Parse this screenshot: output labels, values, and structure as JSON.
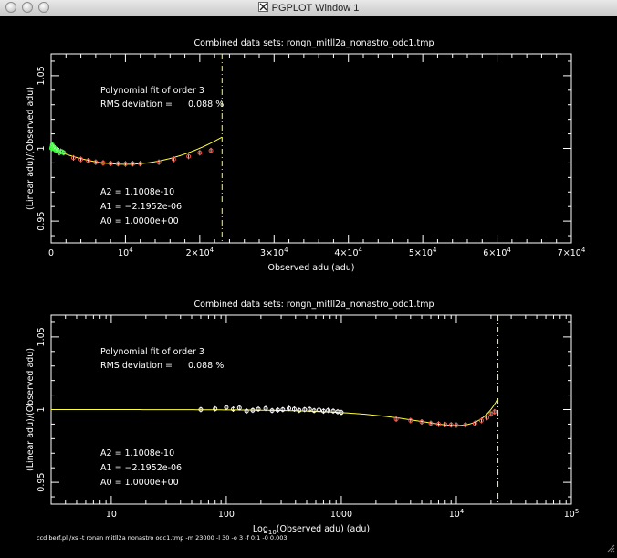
{
  "window": {
    "title": "PGPLOT Window 1"
  },
  "footer": {
    "command": "ccd berf.pl /xs -t ronan mitll2a nonastro odc1.tmp -m 23000 -l 30 -o 3 -f 0:1 -0 0.003"
  },
  "colors": {
    "background": "#000000",
    "axes": "#ffffff",
    "fit": "#ffff40",
    "cutoff": "#ffff40",
    "points_low": "#40ff40",
    "points": "#ff5040",
    "errorbar": "#ffffff"
  },
  "chart_data": [
    {
      "type": "scatter",
      "title": "Combined data sets: rongn_mitll2a_nonastro_odc1.tmp",
      "xlabel": "Observed adu (adu)",
      "ylabel": "(Linear adu)/(Observed adu)",
      "xscale": "linear",
      "xlim": [
        0,
        70000
      ],
      "ylim": [
        0.935,
        1.065
      ],
      "xticks": [
        {
          "v": 0,
          "label": "0"
        },
        {
          "v": 10000,
          "label": "10^4"
        },
        {
          "v": 20000,
          "label": "2×10^4"
        },
        {
          "v": 30000,
          "label": "3×10^4"
        },
        {
          "v": 40000,
          "label": "4×10^4"
        },
        {
          "v": 50000,
          "label": "5×10^4"
        },
        {
          "v": 60000,
          "label": "6×10^4"
        },
        {
          "v": 70000,
          "label": "7×10^4"
        }
      ],
      "yticks": [
        {
          "v": 0.95,
          "label": "0.95"
        },
        {
          "v": 1.0,
          "label": "1"
        },
        {
          "v": 1.05,
          "label": "1.05"
        }
      ],
      "cutoff": 23000,
      "annotations": {
        "fit_label": "Polynomial fit of order  3",
        "rms_label": "RMS deviation =",
        "rms_value": "0.088 %",
        "coeff_a2": "A2 = 1.1008e-10",
        "coeff_a1": "A1 = −2.1952e-06",
        "coeff_a0": "A0 = 1.0000e+00"
      },
      "fit": {
        "A0": 1.0,
        "A1": -2.1952e-06,
        "A2": 1.1008e-10,
        "A3": 0,
        "xmin": 0,
        "xmax": 23000
      },
      "series": [
        {
          "role": "low",
          "x": [
            60,
            100,
            150,
            200,
            280,
            350,
            450,
            550,
            650,
            800,
            950,
            1100,
            1300,
            1500,
            1700
          ],
          "y": [
            1.0,
            1.001,
            1.0025,
            1.0015,
            1.0,
            1.001,
            0.9995,
            1.0,
            0.9985,
            0.999,
            0.998,
            0.997,
            0.998,
            0.9975,
            0.997
          ]
        },
        {
          "role": "main",
          "x": [
            3000,
            4000,
            5000,
            6000,
            7000,
            8000,
            9000,
            10000,
            11000,
            12000,
            14500,
            16500,
            18500,
            20000,
            21500
          ],
          "y": [
            0.9935,
            0.9925,
            0.9915,
            0.9905,
            0.99,
            0.9897,
            0.9895,
            0.9893,
            0.9895,
            0.9895,
            0.9905,
            0.9925,
            0.9945,
            0.997,
            0.9985
          ]
        }
      ]
    },
    {
      "type": "scatter",
      "title": "Combined data sets: rongn_mitll2a_nonastro_odc1.tmp",
      "xlabel_parts": [
        "Log",
        "10",
        "(Observed adu) (adu)"
      ],
      "ylabel": "(Linear adu)/(Observed adu)",
      "xscale": "log",
      "xlim": [
        3,
        100000
      ],
      "ylim": [
        0.935,
        1.065
      ],
      "xticks": [
        {
          "v": 10,
          "label": "10"
        },
        {
          "v": 100,
          "label": "100"
        },
        {
          "v": 1000,
          "label": "1000"
        },
        {
          "v": 10000,
          "label": "10^4"
        },
        {
          "v": 100000,
          "label": "10^5"
        }
      ],
      "yticks": [
        {
          "v": 0.95,
          "label": "0.95"
        },
        {
          "v": 1.0,
          "label": "1"
        },
        {
          "v": 1.05,
          "label": "1.05"
        }
      ],
      "cutoff": 23000,
      "annotations": {
        "fit_label": "Polynomial fit of order  3",
        "rms_label": "RMS deviation =",
        "rms_value": "0.088 %",
        "coeff_a2": "A2 = 1.1008e-10",
        "coeff_a1": "A1 = −2.1952e-06",
        "coeff_a0": "A0 = 1.0000e+00"
      },
      "fit": {
        "A0": 1.0,
        "A1": -2.1952e-06,
        "A2": 1.1008e-10,
        "A3": 0,
        "xmin": 3,
        "xmax": 23000
      },
      "series": [
        {
          "role": "low",
          "x": [
            60,
            80,
            100,
            115,
            130,
            150,
            170,
            190,
            220,
            250,
            280,
            310,
            350,
            390,
            430,
            480,
            530,
            580,
            640,
            700,
            770,
            850,
            930,
            1000
          ],
          "y": [
            1.0,
            1.0005,
            1.0015,
            1.0003,
            1.0012,
            0.999,
            0.9995,
            1.0003,
            1.0008,
            0.9993,
            0.9997,
            1.0,
            1.0008,
            1.0003,
            0.9995,
            1.0,
            1.0002,
            0.9993,
            0.9998,
            0.999,
            0.9995,
            0.999,
            0.9985,
            0.998
          ]
        },
        {
          "role": "main",
          "x": [
            3000,
            4000,
            5000,
            6000,
            7000,
            8000,
            9000,
            10000,
            12000,
            14500,
            16500,
            18500,
            20000,
            21500
          ],
          "y": [
            0.9935,
            0.9925,
            0.9915,
            0.9905,
            0.99,
            0.9897,
            0.9895,
            0.9893,
            0.9895,
            0.9905,
            0.9925,
            0.9945,
            0.997,
            0.9985
          ]
        }
      ]
    }
  ]
}
